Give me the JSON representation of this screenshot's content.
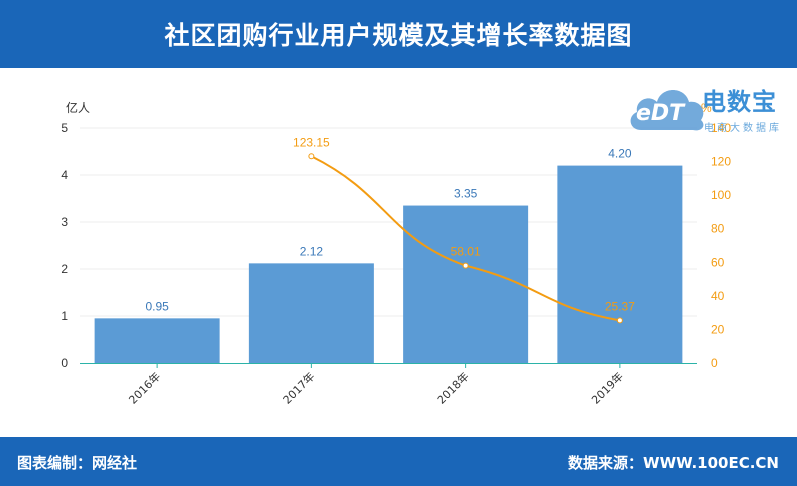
{
  "header": {
    "title": "社区团购行业用户规模及其增长率数据图"
  },
  "footer": {
    "left": "图表编制：网经社",
    "right": "数据来源：WWW.100EC.CN"
  },
  "watermark": {
    "brand": "电数宝",
    "subtitle": "电商大数据库",
    "mark": "eDT"
  },
  "colors": {
    "header": "#1a66b8",
    "bar": "#5b9bd5",
    "line": "#f39c12",
    "axis_right": "#f39c12"
  },
  "chart_data": {
    "type": "bar",
    "categories": [
      "2016年",
      "2017年",
      "2018年",
      "2019年"
    ],
    "series": [
      {
        "values": [
          0.95,
          2.12,
          3.35,
          4.2
        ],
        "labels": [
          "0.95",
          "2.12",
          "3.35",
          "4.20"
        ],
        "axis": "left",
        "render": "bar"
      },
      {
        "values": [
          null,
          123.15,
          58.01,
          25.37
        ],
        "labels": [
          "",
          "123.15",
          "58.01",
          "25.37"
        ],
        "axis": "right",
        "render": "line"
      }
    ],
    "ylabel": "亿人",
    "ylabel_right": "%",
    "ylim": [
      0,
      5
    ],
    "ylim_right": [
      0,
      140
    ],
    "yticks": [
      0,
      1,
      2,
      3,
      4,
      5
    ],
    "yticks_right": [
      0,
      20,
      40,
      60,
      80,
      100,
      120,
      140
    ],
    "grid": true
  }
}
